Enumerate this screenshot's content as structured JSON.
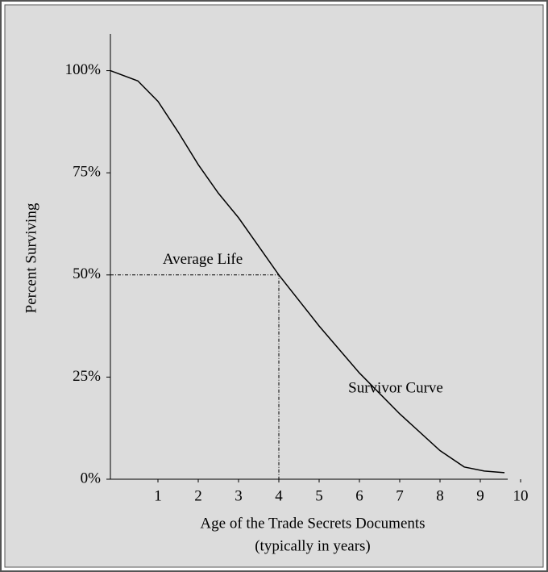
{
  "chart_data": {
    "type": "line",
    "y_label": "Percent Surviving",
    "x_label": [
      "Age of the Trade Secrets Documents",
      "(typically in years)"
    ],
    "series": [
      {
        "name": "Survivor Curve",
        "color": "#000000",
        "x": [
          -0.18,
          0.5,
          1,
          1.5,
          2,
          2.5,
          3,
          3.5,
          4,
          5,
          6,
          7,
          8,
          8.6,
          9.1,
          9.6
        ],
        "values": [
          100,
          97.5,
          92.5,
          85,
          77,
          70,
          64,
          57,
          50,
          37.5,
          26,
          16,
          7,
          3,
          2,
          1.6
        ]
      }
    ],
    "annotations": [
      {
        "text": "Average Life",
        "x": 4,
        "y": 50
      }
    ],
    "xlim": [
      -0.18,
      10
    ],
    "ylim": [
      0,
      109
    ],
    "xticks": [
      1,
      2,
      3,
      4,
      5,
      6,
      7,
      8,
      9,
      10
    ],
    "yticks": [
      {
        "value": 0,
        "label": "0%"
      },
      {
        "value": 25,
        "label": "25%"
      },
      {
        "value": 50,
        "label": "50%"
      },
      {
        "value": 75,
        "label": "75%"
      },
      {
        "value": 100,
        "label": "100%"
      }
    ]
  }
}
